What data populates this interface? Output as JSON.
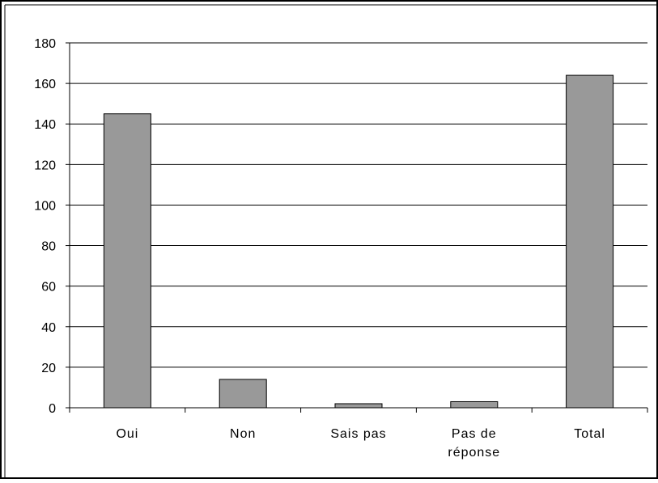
{
  "chart_data": {
    "type": "bar",
    "categories": [
      [
        "Oui"
      ],
      [
        "Non"
      ],
      [
        "Sais pas"
      ],
      [
        "Pas de",
        "réponse"
      ],
      [
        "Total"
      ]
    ],
    "values": [
      145,
      14,
      2,
      3,
      164
    ],
    "ylim": [
      0,
      180
    ],
    "yticks": [
      "0",
      "20",
      "40",
      "60",
      "80",
      "100",
      "120",
      "140",
      "160",
      "180"
    ],
    "grid": true,
    "title": "",
    "xlabel": "",
    "ylabel": "",
    "colors": {
      "bar_fill": "#999999",
      "bar_stroke": "#000000",
      "grid": "#000000",
      "background": "#ffffff"
    }
  }
}
